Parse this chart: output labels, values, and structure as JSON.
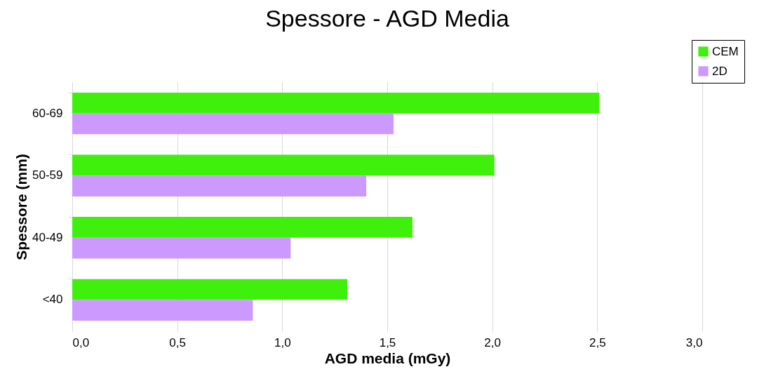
{
  "chart_data": {
    "type": "bar",
    "orientation": "horizontal",
    "title": "Spessore - AGD Media",
    "xlabel": "AGD media (mGy)",
    "ylabel": "Spessore (mm)",
    "categories": [
      "60-69",
      "50-59",
      "40-49",
      "<40"
    ],
    "series": [
      {
        "name": "CEM",
        "color": "#3ef00c",
        "values": [
          2.51,
          2.01,
          1.62,
          1.31
        ]
      },
      {
        "name": "2D",
        "color": "#cc99ff",
        "values": [
          1.53,
          1.4,
          1.04,
          0.86
        ]
      }
    ],
    "xlim": [
      0,
      3
    ],
    "xticks": [
      {
        "value": 0,
        "label": "0,0"
      },
      {
        "value": 0.5,
        "label": "0,5"
      },
      {
        "value": 1,
        "label": "1,0"
      },
      {
        "value": 1.5,
        "label": "1,5"
      },
      {
        "value": 2,
        "label": "2,0"
      },
      {
        "value": 2.5,
        "label": "2,5"
      },
      {
        "value": 3,
        "label": "3,0"
      }
    ],
    "grid": "x",
    "legend": "top right"
  }
}
